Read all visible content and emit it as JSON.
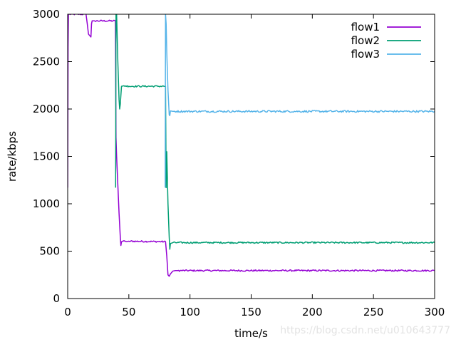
{
  "chart_data": {
    "type": "line",
    "xlabel": "time/s",
    "ylabel": "rate/kbps",
    "xlim": [
      0,
      300
    ],
    "ylim": [
      0,
      3000
    ],
    "x_ticks": [
      0,
      50,
      100,
      150,
      200,
      250,
      300
    ],
    "y_ticks": [
      0,
      500,
      1000,
      1500,
      2000,
      2500,
      3000
    ],
    "grid": false,
    "legend_position": "top-right",
    "series": [
      {
        "name": "flow1",
        "color": "#9400d3",
        "noise": 8,
        "x": [
          0,
          0.3,
          0.6,
          15,
          16,
          17,
          19,
          19.5,
          20,
          22,
          39,
          39.5,
          40,
          41,
          42,
          43,
          43.5,
          44,
          46,
          48,
          50,
          80,
          81,
          82,
          83,
          84,
          86,
          88,
          90,
          300
        ],
        "y": [
          1170,
          2650,
          3000,
          3000,
          2900,
          2790,
          2760,
          2900,
          2930,
          2930,
          2930,
          1700,
          1500,
          1200,
          900,
          650,
          560,
          600,
          610,
          600,
          605,
          600,
          450,
          250,
          235,
          260,
          290,
          295,
          295,
          295
        ]
      },
      {
        "name": "flow2",
        "color": "#009e73",
        "noise": 8,
        "x": [
          39.2,
          39.5,
          40,
          41,
          42,
          42.5,
          43,
          44,
          46,
          50,
          80,
          80.5,
          81,
          82,
          83,
          83.5,
          84,
          86,
          300
        ],
        "y": [
          1170,
          3000,
          3000,
          2500,
          2100,
          2000,
          2050,
          2240,
          2245,
          2240,
          2240,
          1170,
          1550,
          1000,
          650,
          520,
          580,
          590,
          590
        ]
      },
      {
        "name": "flow3",
        "color": "#56b4e9",
        "noise": 10,
        "x": [
          79.7,
          80,
          80.5,
          81,
          82,
          83,
          83.5,
          84,
          86,
          300
        ],
        "y": [
          1170,
          3000,
          2900,
          2600,
          2200,
          1940,
          1930,
          1980,
          1975,
          1975
        ]
      }
    ]
  },
  "watermark": "https://blog.csdn.net/u010643777"
}
